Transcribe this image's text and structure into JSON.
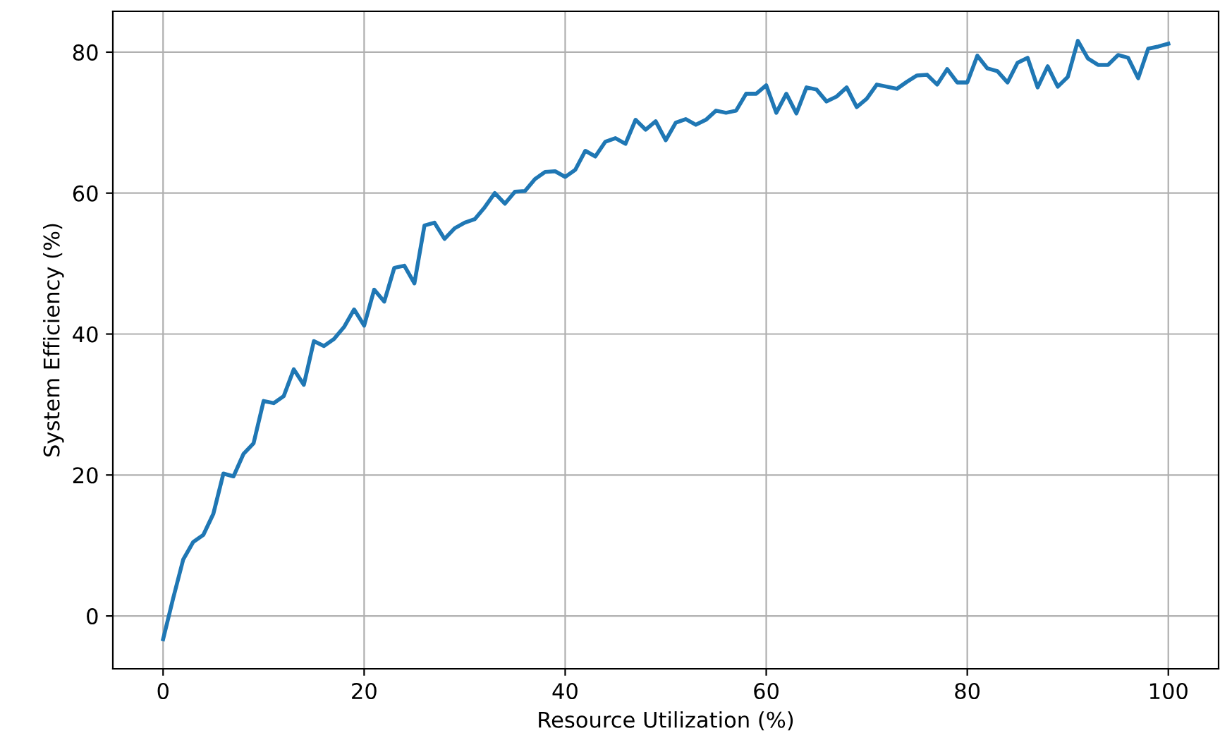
{
  "chart_data": {
    "type": "line",
    "xlabel": "Resource Utilization (%)",
    "ylabel": "System Efficiency (%)",
    "x": [
      0,
      1,
      2,
      3,
      4,
      5,
      6,
      7,
      8,
      9,
      10,
      11,
      12,
      13,
      14,
      15,
      16,
      17,
      18,
      19,
      20,
      21,
      22,
      23,
      24,
      25,
      26,
      27,
      28,
      29,
      30,
      31,
      32,
      33,
      34,
      35,
      36,
      37,
      38,
      39,
      40,
      41,
      42,
      43,
      44,
      45,
      46,
      47,
      48,
      49,
      50,
      51,
      52,
      53,
      54,
      55,
      56,
      57,
      58,
      59,
      60,
      61,
      62,
      63,
      64,
      65,
      66,
      67,
      68,
      69,
      70,
      71,
      72,
      73,
      74,
      75,
      76,
      77,
      78,
      79,
      80,
      81,
      82,
      83,
      84,
      85,
      86,
      87,
      88,
      89,
      90,
      91,
      92,
      93,
      94,
      95,
      96,
      97,
      98,
      99,
      100
    ],
    "series": [
      {
        "color": "#1f77b4",
        "values": [
          -3.3,
          2.5,
          8,
          10.5,
          11.5,
          14.5,
          20.2,
          19.8,
          23,
          24.5,
          30.5,
          30.2,
          31.2,
          35,
          32.8,
          39,
          38.3,
          39.3,
          41,
          43.5,
          41.2,
          46.3,
          44.6,
          49.4,
          49.7,
          47.2,
          55.4,
          55.8,
          53.5,
          55,
          55.8,
          56.3,
          58,
          60,
          58.5,
          60.2,
          60.3,
          62,
          63,
          63.1,
          62.3,
          63.3,
          66,
          65.2,
          67.3,
          67.8,
          67,
          70.4,
          69,
          70.2,
          67.5,
          70,
          70.5,
          69.7,
          70.4,
          71.7,
          71.4,
          71.7,
          74.1,
          74.1,
          75.3,
          71.4,
          74.1,
          71.3,
          75,
          74.7,
          73,
          73.7,
          75,
          72.2,
          73.4,
          75.4,
          75.1,
          74.8,
          75.8,
          76.7,
          76.8,
          75.4,
          77.6,
          75.7,
          75.7,
          79.5,
          77.7,
          77.3,
          75.7,
          78.5,
          79.2,
          75,
          78,
          75.1,
          76.5,
          81.6,
          79.1,
          78.2,
          78.2,
          79.6,
          79.2,
          76.3,
          80.5,
          80.8,
          81.2
        ]
      }
    ],
    "xlim": [
      -5,
      105
    ],
    "ylim": [
      -7.5,
      85.8
    ],
    "xticks": [
      0,
      20,
      40,
      60,
      80,
      100
    ],
    "yticks": [
      0,
      20,
      40,
      60,
      80
    ],
    "grid": true,
    "marker": "none",
    "line_style": "solid"
  }
}
